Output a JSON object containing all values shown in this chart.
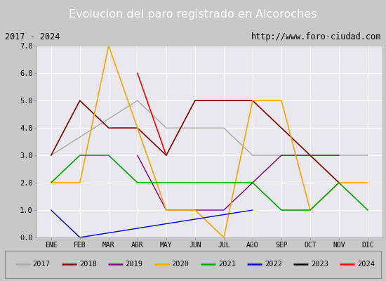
{
  "title": "Evolucion del paro registrado en Alcoroches",
  "subtitle_left": "2017 - 2024",
  "subtitle_right": "http://www.foro-ciudad.com",
  "months": [
    "ENE",
    "FEB",
    "MAR",
    "ABR",
    "MAY",
    "JUN",
    "JUL",
    "AGO",
    "SEP",
    "OCT",
    "NOV",
    "DIC"
  ],
  "ylim": [
    0.0,
    7.0
  ],
  "yticks": [
    0.0,
    1.0,
    2.0,
    3.0,
    4.0,
    5.0,
    6.0,
    7.0
  ],
  "series": {
    "2017": {
      "color": "#aaaaaa",
      "linewidth": 1.0,
      "data": {
        "1": 3,
        "4": 5,
        "5": 4,
        "6": 4,
        "7": 4,
        "8": 3,
        "9": 3,
        "10": 3,
        "11": 3,
        "12": 3
      }
    },
    "2018": {
      "color": "#8b0000",
      "linewidth": 1.2,
      "data": {
        "1": 3,
        "2": 5,
        "3": 4,
        "4": 4,
        "5": 3,
        "6": 5,
        "7": 5,
        "8": 5,
        "9": 4,
        "10": 3,
        "11": 2
      }
    },
    "2019": {
      "color": "#800080",
      "linewidth": 1.0,
      "data": {
        "4": 3,
        "5": 1,
        "6": 1,
        "7": 1,
        "8": 2,
        "9": 3,
        "10": 3,
        "11": 3
      }
    },
    "2020": {
      "color": "#ffa500",
      "linewidth": 1.2,
      "data": {
        "1": 2,
        "2": 2,
        "3": 7,
        "4": 4,
        "5": 1,
        "6": 1,
        "7": 0,
        "8": 5,
        "9": 5,
        "10": 1,
        "11": 2,
        "12": 2
      }
    },
    "2021": {
      "color": "#00aa00",
      "linewidth": 1.2,
      "data": {
        "1": 2,
        "2": 3,
        "3": 3,
        "4": 2,
        "5": 2,
        "6": 2,
        "7": 2,
        "8": 2,
        "9": 1,
        "10": 1,
        "11": 2,
        "12": 1
      }
    },
    "2022": {
      "color": "#0000cd",
      "linewidth": 1.0,
      "data": {
        "1": 1,
        "2": 0,
        "8": 1
      }
    },
    "2023": {
      "color": "#000000",
      "linewidth": 1.2,
      "data": {}
    },
    "2024": {
      "color": "#ff0000",
      "linewidth": 1.2,
      "data": {
        "4": 6,
        "5": 3
      }
    }
  },
  "title_bg_color": "#4a86c8",
  "title_fg_color": "#ffffff",
  "subtitle_bg_color": "#f0f0f0",
  "plot_bg_color": "#e8e8ee",
  "outer_bg_color": "#c8c8c8",
  "legend_bg_color": "#d8d8d8",
  "legend_order": [
    "2017",
    "2018",
    "2019",
    "2020",
    "2021",
    "2022",
    "2023",
    "2024"
  ]
}
